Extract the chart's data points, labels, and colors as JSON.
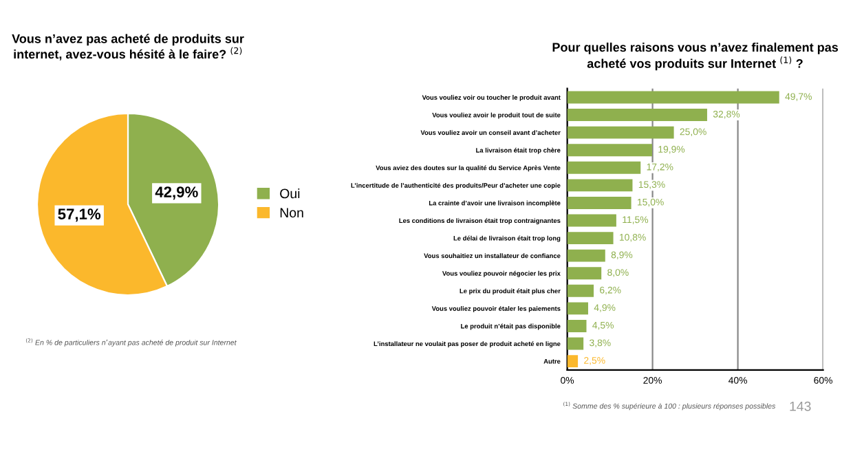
{
  "chart_data": [
    {
      "type": "pie",
      "title": "Vous n’avez pas acheté de produits sur internet, avez-vous hésité à le faire? $^{(2)}$",
      "categories": [
        "Oui",
        "Non"
      ],
      "values": [
        42.9,
        57.1
      ],
      "colors": [
        "#8fb04e",
        "#fbb82c"
      ],
      "value_labels": [
        "42,9%",
        "57,1%"
      ],
      "legend": "right",
      "annotations": [
        "$^{(2)}$ En % de particuliers n’ayant pas acheté de produit sur Internet"
      ]
    },
    {
      "type": "bar",
      "orientation": "horizontal",
      "title": "Pour quelles raisons vous n’avez finalement pas acheté vos produits sur Internet $^{(1)}$ ?",
      "categories": [
        "Vous vouliez voir ou toucher le produit avant",
        "Vous vouliez avoir le produit tout de suite",
        "Vous vouliez avoir un conseil avant d’acheter",
        "La livraison était trop chère",
        "Vous aviez des doutes sur la qualité du Service Après Vente",
        "L’incertitude de l’authenticité des produits/Peur d’acheter une copie",
        "La crainte d’avoir une livraison incomplète",
        "Les conditions de livraison était trop contraignantes",
        "Le délai de livraison était trop long",
        "Vous souhaitiez un installateur de confiance",
        "Vous vouliez pouvoir négocier les prix",
        "Le prix du produit était plus cher",
        "Vous vouliez pouvoir étaler les paiements",
        "Le produit n’était pas disponible",
        "L’installateur ne voulait pas poser de produit acheté en ligne",
        "Autre"
      ],
      "values": [
        49.7,
        32.8,
        25.0,
        19.9,
        17.2,
        15.3,
        15.0,
        11.5,
        10.8,
        8.9,
        8.0,
        6.2,
        4.9,
        4.5,
        3.8,
        2.5
      ],
      "colors": [
        "#8fb04e",
        "#8fb04e",
        "#8fb04e",
        "#8fb04e",
        "#8fb04e",
        "#8fb04e",
        "#8fb04e",
        "#8fb04e",
        "#8fb04e",
        "#8fb04e",
        "#8fb04e",
        "#8fb04e",
        "#8fb04e",
        "#8fb04e",
        "#8fb04e",
        "#fbb82c"
      ],
      "value_labels": [
        "49,7%",
        "32,8%",
        "25,0%",
        "19,9%",
        "17,2%",
        "15,3%",
        "15,0%",
        "11,5%",
        "10,8%",
        "8,9%",
        "8,0%",
        "6,2%",
        "4,9%",
        "4,5%",
        "3,8%",
        "2,5%"
      ],
      "xlim": [
        0,
        60
      ],
      "xticks": [
        {
          "value": 0,
          "label": "0%"
        },
        {
          "value": 20,
          "label": "20%"
        },
        {
          "value": 40,
          "label": "40%"
        },
        {
          "value": 60,
          "label": "60%"
        }
      ],
      "grid": "x",
      "annotations": [
        "$^{(1)}$ Somme des % supérieure à 100 : plusieurs réponses possibles",
        "143"
      ]
    }
  ]
}
